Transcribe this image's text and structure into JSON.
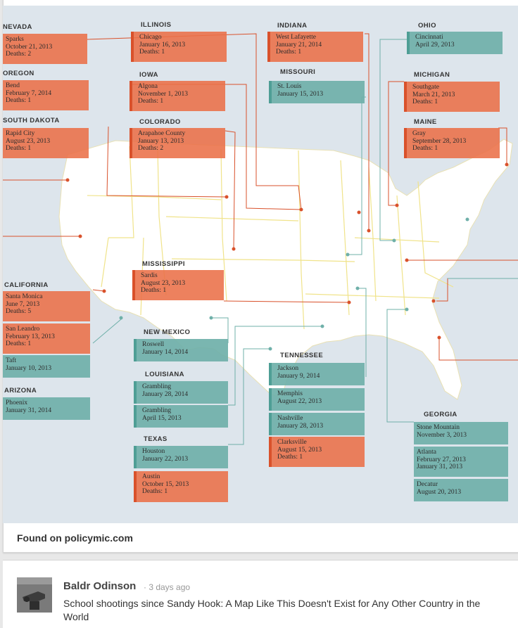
{
  "footer": {
    "source_label": "Found on policymic.com"
  },
  "post": {
    "author": "Baldr Odinson",
    "time": "· 3 days ago",
    "description": "School shootings since Sandy Hook: A Map Like This Doesn't Exist for Any Other Country in the World"
  },
  "map": {
    "colors": {
      "fatal": "#eb7048",
      "nonfatal": "#6fb0a9",
      "land": "#ffffff",
      "water": "#dde5ec",
      "borders": "#f0e38a"
    },
    "states": {
      "nevada": "NEVADA",
      "oregon": "OREGON",
      "south_dakota": "SOUTH DAKOTA",
      "illinois": "ILLINOIS",
      "iowa": "IOWA",
      "colorado": "COLORADO",
      "indiana": "INDIANA",
      "missouri": "MISSOURI",
      "ohio": "OHIO",
      "michigan": "MICHIGAN",
      "maine": "MAINE",
      "california": "CALIFORNIA",
      "arizona": "ARIZONA",
      "mississippi": "MISSISSIPPI",
      "new_mexico": "NEW MEXICO",
      "louisiana": "LOUISIANA",
      "texas": "TEXAS",
      "tennessee": "TENNESSEE",
      "georgia": "GEORGIA"
    },
    "events": {
      "sparks": [
        "Sparks",
        "October 21, 2013",
        "Deaths: 2"
      ],
      "bend": [
        "Bend",
        "February 7, 2014",
        "Deaths: 1"
      ],
      "rapid_city": [
        "Rapid City",
        "August 23, 2013",
        "Deaths: 1"
      ],
      "chicago": [
        "Chicago",
        "January 16, 2013",
        "Deaths: 1"
      ],
      "algona": [
        "Algona",
        "November 1, 2013",
        "Deaths: 1"
      ],
      "arapahoe": [
        "Arapahoe County",
        "January 13, 2013",
        "Deaths: 2"
      ],
      "west_lafayette": [
        "West Lafayette",
        "January 21, 2014",
        "Deaths: 1"
      ],
      "st_louis": [
        "St. Louis",
        "January 15, 2013"
      ],
      "cincinnati": [
        "Cincinnati",
        "April 29, 2013"
      ],
      "southgate": [
        "Southgate",
        "March 21, 2013",
        "Deaths: 1"
      ],
      "gray": [
        "Gray",
        "September 28, 2013",
        "Deaths: 1"
      ],
      "santa_monica": [
        "Santa Monica",
        "June 7, 2013",
        "Deaths: 5"
      ],
      "san_leandro": [
        "San Leandro",
        "February 13, 2013",
        "Deaths: 1"
      ],
      "taft": [
        "Taft",
        "January 10, 2013"
      ],
      "phoenix": [
        "Phoenix",
        "January 31, 2014"
      ],
      "sardis": [
        "Sardis",
        "August 23, 2013",
        "Deaths: 1"
      ],
      "roswell": [
        "Roswell",
        "January 14, 2014"
      ],
      "grambling1": [
        "Grambling",
        "January 28, 2014"
      ],
      "grambling2": [
        "Grambling",
        "April 15, 2013"
      ],
      "houston": [
        "Houston",
        "January 22, 2013"
      ],
      "austin": [
        "Austin",
        "October 15, 2013",
        "Deaths: 1"
      ],
      "jackson": [
        "Jackson",
        "January 9, 2014"
      ],
      "memphis": [
        "Memphis",
        "August 22, 2013"
      ],
      "nashville": [
        "Nashville",
        "January 28, 2013"
      ],
      "clarksville": [
        "Clarksville",
        "August 15, 2013",
        "Deaths: 1"
      ],
      "stone_mountain": [
        "Stone Mountain",
        "November 3, 2013"
      ],
      "atlanta": [
        "Atlanta",
        "February 27, 2013",
        "January 31, 2013"
      ],
      "decatur": [
        "Decatur",
        "August 20, 2013"
      ]
    }
  }
}
